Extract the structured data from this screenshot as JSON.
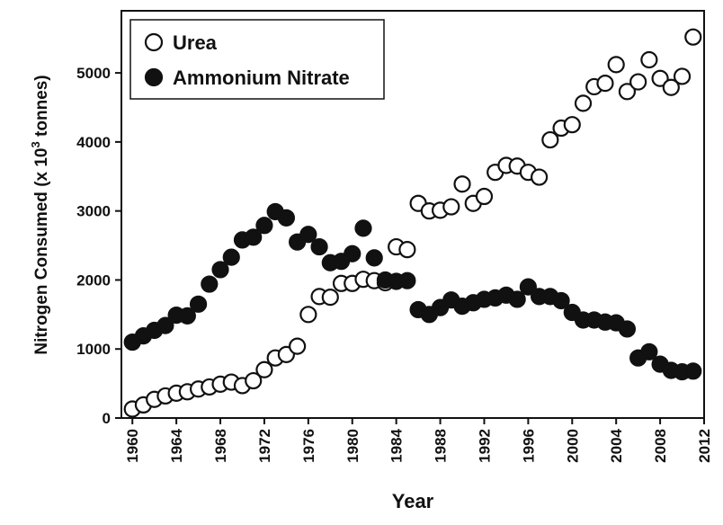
{
  "chart_data": {
    "type": "scatter",
    "title": "",
    "xlabel": "Year",
    "ylabel": "Nitrogen Consumed (x 10",
    "ylabel_sup": "3",
    "ylabel_suffix": " tonnes)",
    "xlim": [
      1959,
      2012
    ],
    "ylim": [
      0,
      5900
    ],
    "x_ticks": [
      1960,
      1964,
      1968,
      1972,
      1976,
      1980,
      1984,
      1988,
      1992,
      1996,
      2000,
      2004,
      2008,
      2012
    ],
    "x_tick_labels": [
      "1960",
      "1964",
      "1968",
      "1972",
      "1976",
      "1980",
      "1984",
      "1988",
      "1992",
      "1996",
      "2000",
      "2004",
      "2008",
      "2012"
    ],
    "y_ticks": [
      0,
      1000,
      2000,
      3000,
      4000,
      5000
    ],
    "y_tick_labels": [
      "0",
      "1000",
      "2000",
      "3000",
      "4000",
      "5000"
    ],
    "grid": false,
    "legend_position": "top-left",
    "series": [
      {
        "name": "Urea",
        "marker": "open-circle",
        "color": "#111111",
        "x": [
          1960,
          1961,
          1962,
          1963,
          1964,
          1965,
          1966,
          1967,
          1968,
          1969,
          1970,
          1971,
          1972,
          1973,
          1974,
          1975,
          1976,
          1977,
          1978,
          1979,
          1980,
          1981,
          1982,
          1983,
          1984,
          1985,
          1986,
          1987,
          1988,
          1989,
          1990,
          1991,
          1992,
          1993,
          1994,
          1995,
          1996,
          1997,
          1998,
          1999,
          2000,
          2001,
          2002,
          2003,
          2004,
          2005,
          2006,
          2007,
          2008,
          2009,
          2010,
          2011
        ],
        "y": [
          130,
          190,
          270,
          320,
          360,
          380,
          420,
          450,
          490,
          520,
          470,
          540,
          700,
          870,
          920,
          1040,
          1500,
          1760,
          1750,
          1950,
          1950,
          2010,
          1990,
          1960,
          2480,
          2440,
          3110,
          3000,
          3010,
          3060,
          3390,
          3110,
          3210,
          3560,
          3660,
          3650,
          3560,
          3490,
          4030,
          4200,
          4250,
          4560,
          4800,
          4850,
          5120,
          4730,
          4870,
          5190,
          4920,
          4790,
          4950,
          5520
        ]
      },
      {
        "name": "Ammonium Nitrate",
        "marker": "filled-circle",
        "color": "#111111",
        "x": [
          1960,
          1961,
          1962,
          1963,
          1964,
          1965,
          1966,
          1967,
          1968,
          1969,
          1970,
          1971,
          1972,
          1973,
          1974,
          1975,
          1976,
          1977,
          1978,
          1979,
          1980,
          1981,
          1982,
          1983,
          1984,
          1985,
          1986,
          1987,
          1988,
          1989,
          1990,
          1991,
          1992,
          1993,
          1994,
          1995,
          1996,
          1997,
          1998,
          1999,
          2000,
          2001,
          2002,
          2003,
          2004,
          2005,
          2006,
          2007,
          2008,
          2009,
          2010,
          2011
        ],
        "y": [
          1100,
          1190,
          1270,
          1340,
          1490,
          1480,
          1650,
          1940,
          2150,
          2330,
          2580,
          2620,
          2790,
          2990,
          2900,
          2550,
          2660,
          2480,
          2250,
          2270,
          2380,
          2750,
          2320,
          2000,
          1980,
          1990,
          1570,
          1500,
          1600,
          1710,
          1620,
          1670,
          1720,
          1740,
          1780,
          1720,
          1900,
          1760,
          1760,
          1700,
          1530,
          1420,
          1420,
          1390,
          1380,
          1290,
          870,
          960,
          780,
          690,
          670,
          680
        ]
      }
    ]
  }
}
